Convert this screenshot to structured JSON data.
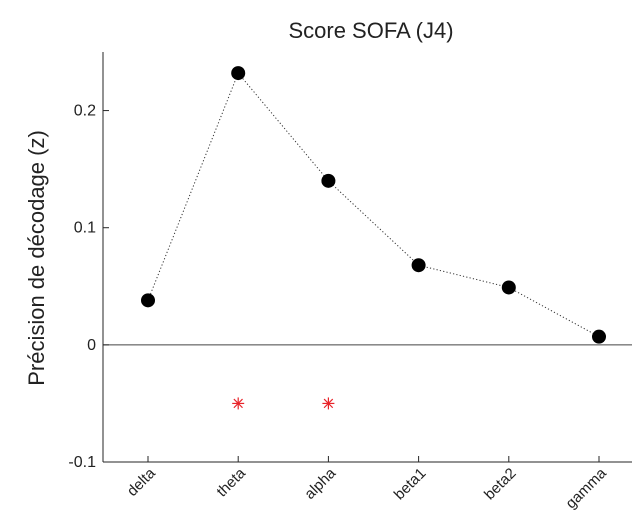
{
  "chart_data": {
    "type": "scatter",
    "title": "Score SOFA (J4)",
    "xlabel": "",
    "ylabel": "Précision de décodage (z)",
    "categories": [
      "delta",
      "theta",
      "alpha",
      "beta1",
      "beta2",
      "gamma"
    ],
    "series": [
      {
        "values": [
          0.038,
          0.232,
          0.14,
          0.068,
          0.049,
          0.007
        ],
        "color": "#000000",
        "marker": "circle",
        "line": "dotted"
      }
    ],
    "significance_markers": [
      {
        "category": "theta",
        "y": -0.05,
        "symbol": "*",
        "color": "#e8242a"
      },
      {
        "category": "alpha",
        "y": -0.05,
        "symbol": "*",
        "color": "#e8242a"
      }
    ],
    "zero_line": true,
    "ylim": [
      -0.1,
      0.25
    ],
    "yticks": [
      -0.1,
      0,
      0.1,
      0.2
    ],
    "ytick_labels": [
      "-0.1",
      "0",
      "0.1",
      "0.2"
    ],
    "grid": false
  }
}
